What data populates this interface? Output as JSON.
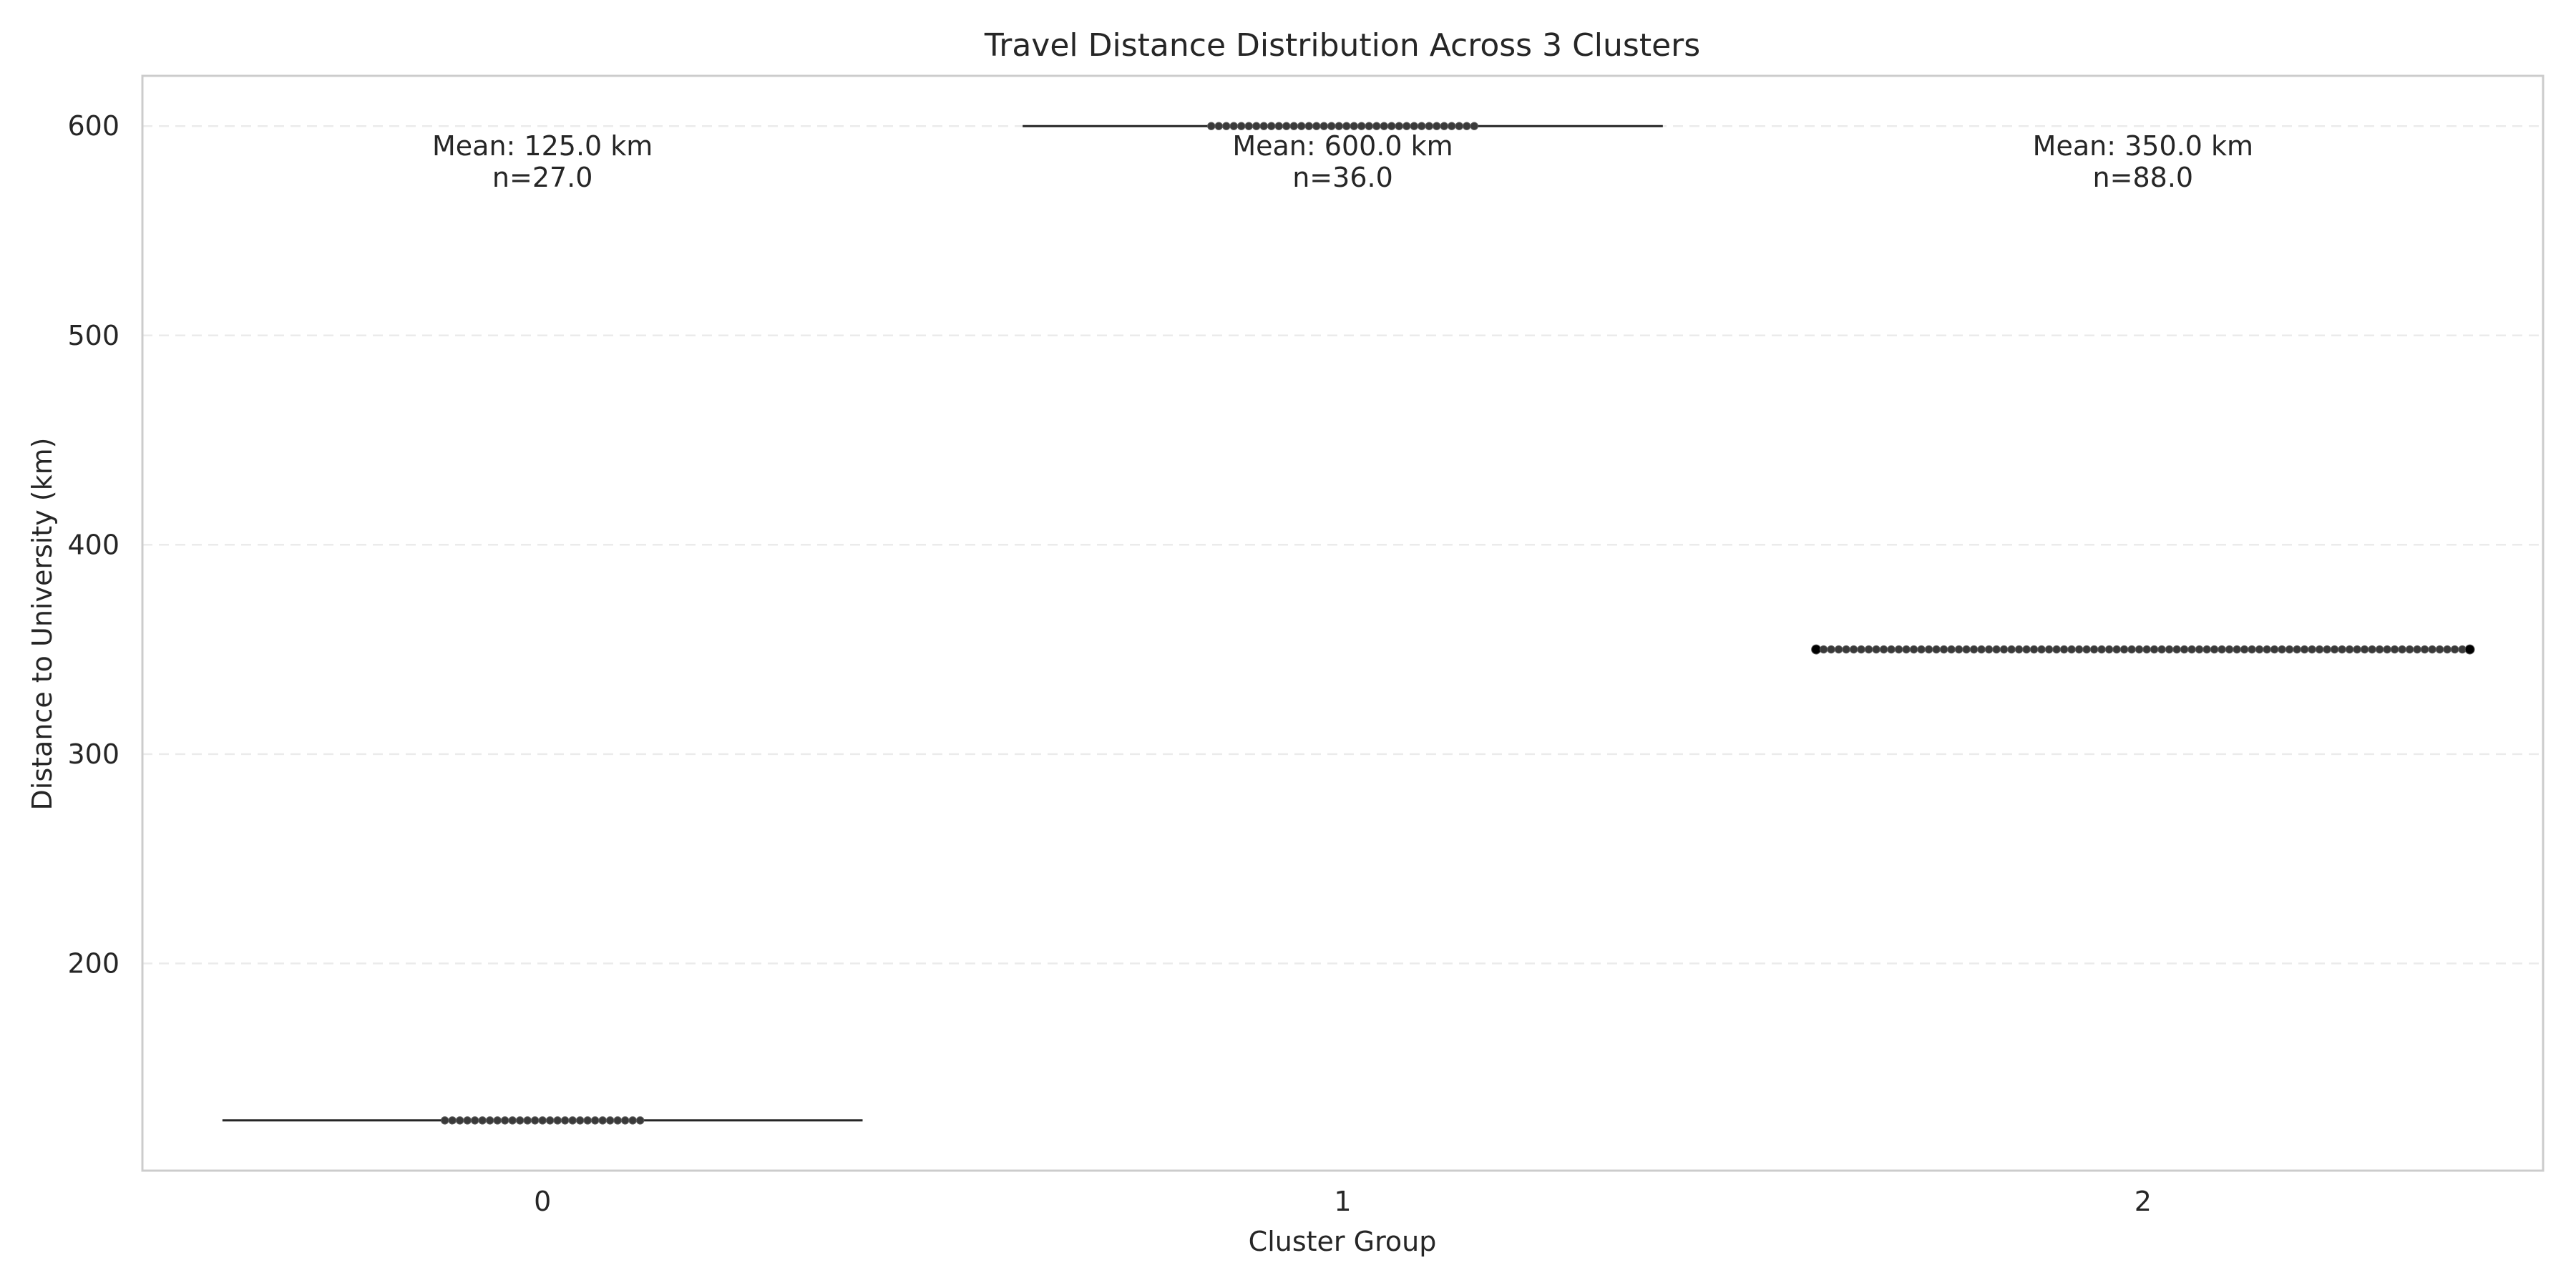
{
  "chart_data": {
    "type": "box",
    "title": "Travel Distance Distribution Across 3 Clusters",
    "xlabel": "Cluster Group",
    "ylabel": "Distance to University (km)",
    "categories": [
      "0",
      "1",
      "2"
    ],
    "ylim": [
      101,
      624
    ],
    "yticks": [
      200,
      300,
      400,
      500,
      600
    ],
    "grid": "y-dashed",
    "groups": [
      {
        "category": "0",
        "value": 125.0,
        "n": 27,
        "annotation_line1": "Mean: 125.0 km",
        "annotation_line2": "n=27.0"
      },
      {
        "category": "1",
        "value": 600.0,
        "n": 36,
        "annotation_line1": "Mean: 600.0 km",
        "annotation_line2": "n=36.0"
      },
      {
        "category": "2",
        "value": 350.0,
        "n": 88,
        "annotation_line1": "Mean: 350.0 km",
        "annotation_line2": "n=88.0"
      }
    ],
    "annotation_y": 560
  }
}
